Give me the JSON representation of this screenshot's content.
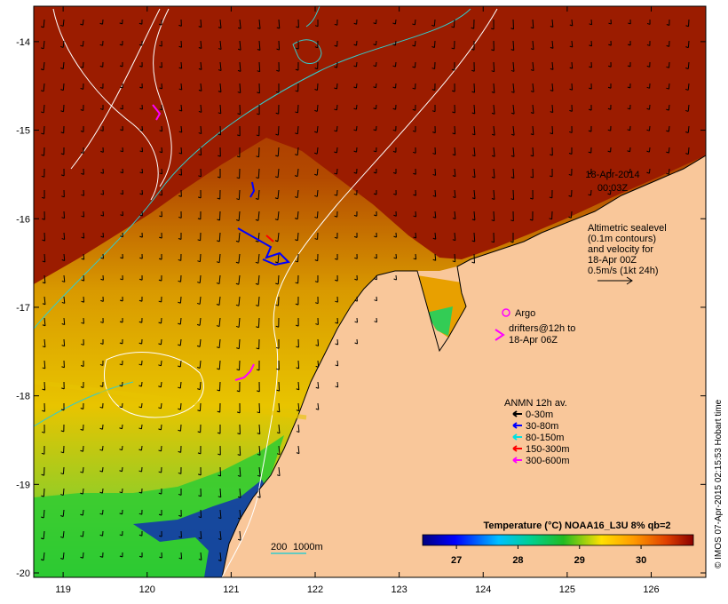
{
  "map": {
    "lon_ticks": [
      "119",
      "120",
      "121",
      "122",
      "123",
      "124",
      "125",
      "126"
    ],
    "lat_ticks": [
      "-14",
      "-15",
      "-16",
      "-17",
      "-18",
      "-19",
      "-20"
    ],
    "lon_range": [
      118.65,
      126.65
    ],
    "lat_range": [
      -20.05,
      -13.6
    ]
  },
  "timestamp": {
    "date": "18-Apr-2014",
    "time": "00:03Z"
  },
  "altimetry_note": {
    "lines": [
      "Altimetric sealevel",
      "(0.1m contours)",
      "and velocity for",
      "18-Apr 00Z",
      "0.5m/s (1kt 24h)"
    ]
  },
  "argo": {
    "label": "Argo"
  },
  "drifters": {
    "lines": [
      "drifters@12h to",
      "18-Apr 06Z"
    ]
  },
  "anmn": {
    "title": "ANMN 12h av.",
    "items": [
      {
        "label": "0-30m",
        "color": "#000000"
      },
      {
        "label": "30-80m",
        "color": "#0000ff"
      },
      {
        "label": "80-150m",
        "color": "#00e0e0"
      },
      {
        "label": "150-300m",
        "color": "#ff0000"
      },
      {
        "label": "300-600m",
        "color": "#ff00ff"
      }
    ]
  },
  "bathymetry": {
    "label_200": "200",
    "label_1000": "1000m"
  },
  "colorbar": {
    "title": "Temperature (°C) NOAA16_L3U 8% qb=2",
    "ticks": [
      "27",
      "28",
      "29",
      "30"
    ],
    "range": [
      26.45,
      30.85
    ]
  },
  "credit": "© IMOS 07-Apr-2015 02:15:53 Hobart time",
  "colors": {
    "land": "#f9c79a",
    "warm": "#9b1c00",
    "mid": "#e0a000",
    "cool": "#33cc33"
  }
}
